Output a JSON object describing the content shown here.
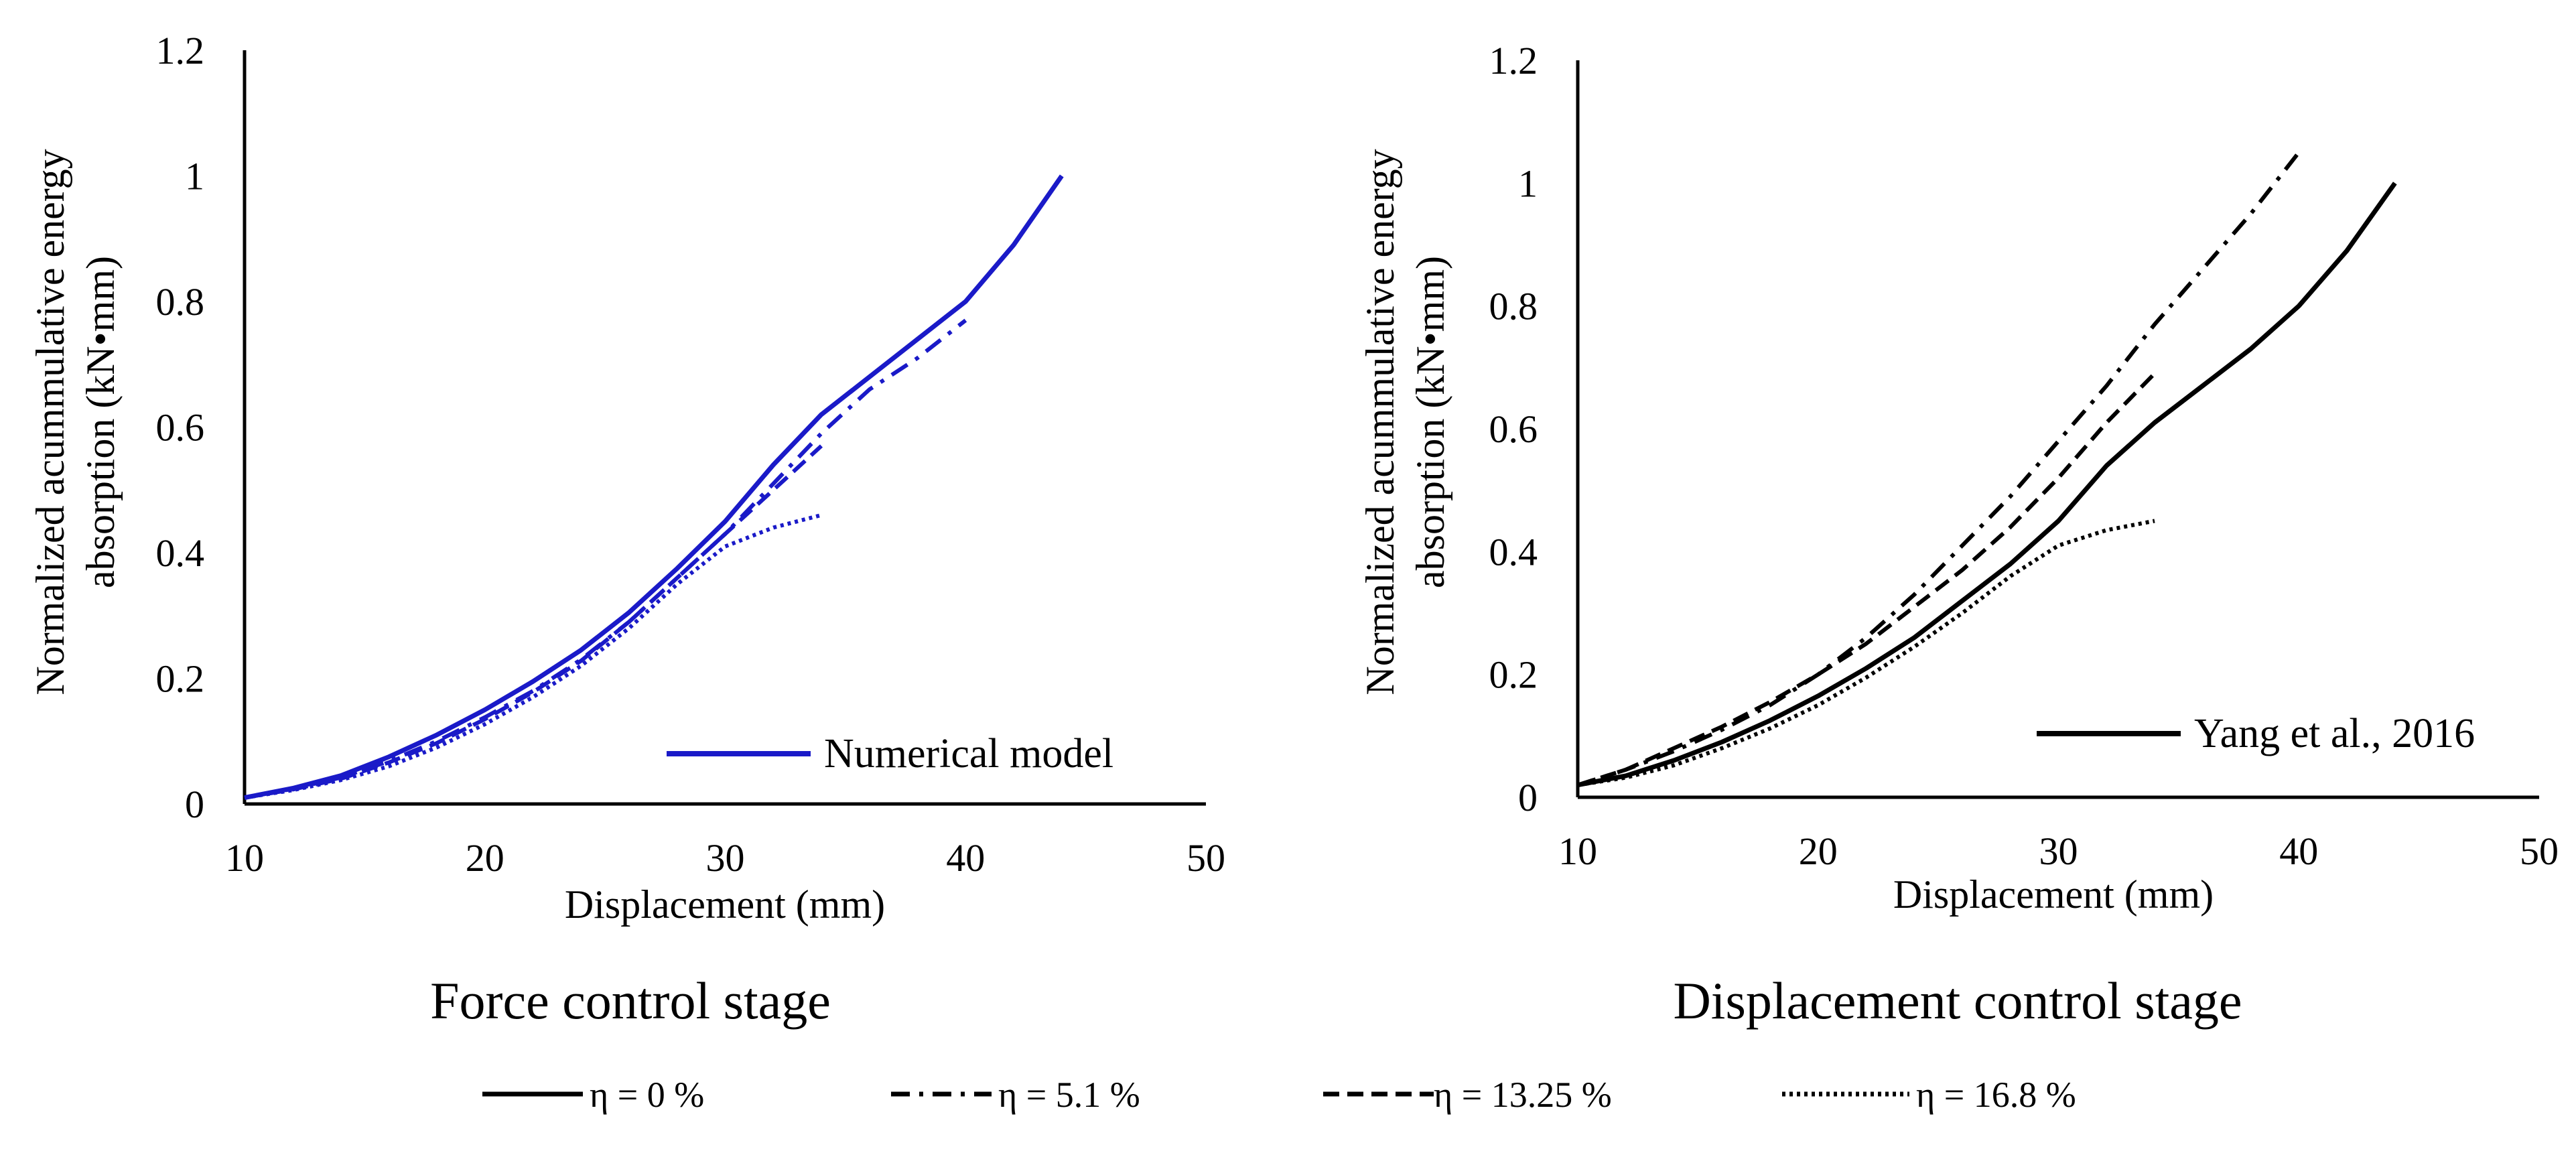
{
  "figure": {
    "legend": [
      {
        "label": "η = 0 %",
        "dash": "solid"
      },
      {
        "label": "η = 5.1 %",
        "dash": "dashdot"
      },
      {
        "label": "η = 13.25 %",
        "dash": "dashed"
      },
      {
        "label": "η = 16.8 %",
        "dash": "dotted"
      }
    ]
  },
  "chart_data": [
    {
      "type": "line",
      "title": "Force control stage",
      "xlabel": "Displacement (mm)",
      "ylabel_line1": "Normalized acummulative energy",
      "ylabel_line2": "absorption (kN•mm)",
      "xlim": [
        10,
        50
      ],
      "ylim": [
        0,
        1.2
      ],
      "xticks": [
        "10",
        "20",
        "30",
        "40",
        "50"
      ],
      "yticks": [
        "0",
        "0.2",
        "0.4",
        "0.6",
        "0.8",
        "1",
        "1.2"
      ],
      "line_color": "#1a1ac8",
      "legend_entry": "Numerical model",
      "legend_position": "bottom-right",
      "series": [
        {
          "name": "η = 0 %",
          "dash": "solid",
          "x": [
            10,
            12,
            14,
            16,
            18,
            20,
            22,
            24,
            26,
            28,
            30,
            32,
            34,
            36,
            38,
            40,
            42,
            44
          ],
          "y": [
            0.01,
            0.025,
            0.045,
            0.075,
            0.11,
            0.15,
            0.195,
            0.245,
            0.305,
            0.375,
            0.45,
            0.54,
            0.62,
            0.68,
            0.74,
            0.8,
            0.89,
            1.0
          ]
        },
        {
          "name": "η = 5.1 %",
          "dash": "dashdot",
          "x": [
            10,
            12,
            14,
            16,
            18,
            20,
            22,
            24,
            26,
            28,
            30,
            32,
            34,
            36,
            38,
            40
          ],
          "y": [
            0.01,
            0.024,
            0.042,
            0.068,
            0.1,
            0.138,
            0.18,
            0.23,
            0.29,
            0.36,
            0.43,
            0.51,
            0.59,
            0.66,
            0.71,
            0.77
          ]
        },
        {
          "name": "η = 13.25 %",
          "dash": "dashed",
          "x": [
            10,
            12,
            14,
            16,
            18,
            20,
            22,
            24,
            26,
            28,
            30,
            32,
            34
          ],
          "y": [
            0.01,
            0.023,
            0.04,
            0.066,
            0.097,
            0.135,
            0.178,
            0.228,
            0.29,
            0.36,
            0.43,
            0.5,
            0.57
          ]
        },
        {
          "name": "η = 16.8 %",
          "dash": "dotted",
          "x": [
            10,
            12,
            14,
            16,
            18,
            20,
            22,
            24,
            26,
            28,
            30,
            32,
            34
          ],
          "y": [
            0.01,
            0.022,
            0.038,
            0.06,
            0.09,
            0.127,
            0.17,
            0.22,
            0.28,
            0.35,
            0.41,
            0.44,
            0.46
          ]
        }
      ]
    },
    {
      "type": "line",
      "title": "Displacement control stage",
      "xlabel": "Displacement (mm)",
      "ylabel_line1": "Normalized acummulative energy",
      "ylabel_line2": "absorption (kN•mm)",
      "xlim": [
        10,
        50
      ],
      "ylim": [
        0,
        1.2
      ],
      "xticks": [
        "10",
        "20",
        "30",
        "40",
        "50"
      ],
      "yticks": [
        "0",
        "0.2",
        "0.4",
        "0.6",
        "0.8",
        "1",
        "1.2"
      ],
      "line_color": "#000000",
      "legend_entry": "Yang et al., 2016",
      "legend_position": "bottom-right",
      "series": [
        {
          "name": "η = 0 %",
          "dash": "solid",
          "x": [
            10,
            12,
            14,
            16,
            18,
            20,
            22,
            24,
            26,
            28,
            30,
            32,
            34,
            36,
            38,
            40,
            42,
            44
          ],
          "y": [
            0.02,
            0.035,
            0.06,
            0.09,
            0.125,
            0.165,
            0.21,
            0.26,
            0.32,
            0.38,
            0.45,
            0.54,
            0.61,
            0.67,
            0.73,
            0.8,
            0.89,
            1.0
          ]
        },
        {
          "name": "η = 5.1 %",
          "dash": "dashdot",
          "x": [
            10,
            12,
            14,
            16,
            18,
            20,
            22,
            24,
            26,
            28,
            30,
            32,
            34,
            36,
            38,
            40
          ],
          "y": [
            0.02,
            0.045,
            0.075,
            0.11,
            0.15,
            0.2,
            0.26,
            0.33,
            0.41,
            0.49,
            0.58,
            0.67,
            0.77,
            0.86,
            0.95,
            1.05
          ]
        },
        {
          "name": "η = 13.25 %",
          "dash": "dashed",
          "x": [
            10,
            12,
            14,
            16,
            18,
            20,
            22,
            24,
            26,
            28,
            30,
            32,
            34
          ],
          "y": [
            0.02,
            0.045,
            0.08,
            0.115,
            0.155,
            0.2,
            0.25,
            0.31,
            0.37,
            0.44,
            0.52,
            0.61,
            0.69
          ]
        },
        {
          "name": "η = 16.8 %",
          "dash": "dotted",
          "x": [
            10,
            12,
            14,
            16,
            18,
            20,
            22,
            24,
            26,
            28,
            30,
            32,
            34
          ],
          "y": [
            0.02,
            0.032,
            0.052,
            0.08,
            0.112,
            0.15,
            0.195,
            0.245,
            0.3,
            0.36,
            0.41,
            0.435,
            0.45
          ]
        }
      ]
    }
  ]
}
